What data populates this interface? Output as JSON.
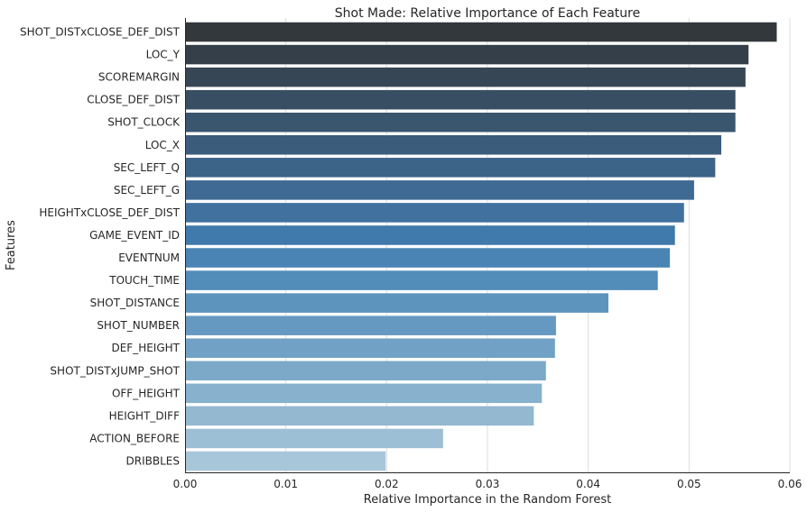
{
  "chart_data": {
    "type": "bar",
    "orientation": "horizontal",
    "title": "Shot Made: Relative Importance of Each Feature",
    "xlabel": "Relative Importance in the Random Forest",
    "ylabel": "Features",
    "xlim": [
      0,
      0.06
    ],
    "xticks": [
      "0.00",
      "0.01",
      "0.02",
      "0.03",
      "0.04",
      "0.05",
      "0.06"
    ],
    "grid": "vertical",
    "categories": [
      "SHOT_DISTxCLOSE_DEF_DIST",
      "LOC_Y",
      "SCOREMARGIN",
      "CLOSE_DEF_DIST",
      "SHOT_CLOCK",
      "LOC_X",
      "SEC_LEFT_Q",
      "SEC_LEFT_G",
      "HEIGHTxCLOSE_DEF_DIST",
      "GAME_EVENT_ID",
      "EVENTNUM",
      "TOUCH_TIME",
      "SHOT_DISTANCE",
      "SHOT_NUMBER",
      "DEF_HEIGHT",
      "SHOT_DISTxJUMP_SHOT",
      "OFF_HEIGHT",
      "HEIGHT_DIFF",
      "ACTION_BEFORE",
      "DRIBBLES"
    ],
    "values": [
      0.0587,
      0.0559,
      0.0556,
      0.0546,
      0.0546,
      0.0532,
      0.0526,
      0.0505,
      0.0495,
      0.0486,
      0.0481,
      0.0469,
      0.042,
      0.0368,
      0.0367,
      0.0358,
      0.0354,
      0.0346,
      0.0256,
      0.0199
    ],
    "palette": [
      "#33383d",
      "#343f4a",
      "#364655",
      "#384e62",
      "#3a566f",
      "#3b5d7b",
      "#3c6388",
      "#3e6a94",
      "#40719f",
      "#4079ab",
      "#4a84b4",
      "#528cb9",
      "#5c94bd",
      "#6699c1",
      "#71a2c5",
      "#7ca9c8",
      "#87b1cd",
      "#93b8d0",
      "#9dbfd5",
      "#a7c6da"
    ]
  }
}
